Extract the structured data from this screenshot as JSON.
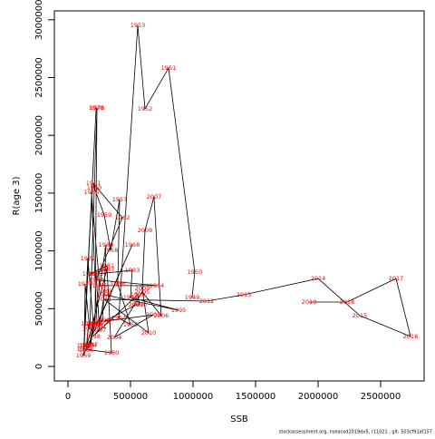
{
  "chart_data": {
    "type": "scatter",
    "xlabel": "SSB",
    "ylabel": "R(age 3)",
    "footer": "stockassessment.org, nseacod2019dv5, r11021 , git: 503cf91af157",
    "label_color": "#ff0000",
    "line_color": "#000000",
    "xlim": [
      -108700,
      2847800
    ],
    "ylim": [
      -125600,
      3077000
    ],
    "xticks": [
      0,
      500000,
      1000000,
      1500000,
      2000000,
      2500000
    ],
    "yticks": [
      0,
      500000,
      1000000,
      1500000,
      2000000,
      2500000,
      3000000
    ],
    "labels": [
      "1949",
      "1950",
      "1951",
      "1952",
      "1953",
      "1954",
      "1955",
      "1956",
      "1957",
      "1958",
      "1959",
      "1960",
      "1961",
      "1962",
      "1963",
      "1964",
      "1965",
      "1966",
      "1967",
      "1968",
      "1969",
      "1970",
      "1971",
      "1972",
      "1973",
      "1974",
      "1975",
      "1976",
      "1977",
      "1978",
      "1979",
      "1980",
      "1981",
      "1982",
      "1983",
      "1984",
      "1985",
      "1986",
      "1987",
      "1988",
      "1989",
      "1990",
      "1991",
      "1992",
      "1993",
      "1994",
      "1995",
      "1996",
      "1997",
      "1998",
      "1999",
      "2000",
      "2001",
      "2002",
      "2003",
      "2004",
      "2005",
      "2006",
      "2007",
      "2008",
      "2009",
      "2010",
      "2011",
      "2012",
      "2013",
      "2014",
      "2015",
      "2016",
      "2017",
      "2018",
      "2019"
    ],
    "x": [
      993000,
      1014000,
      804000,
      616000,
      558000,
      406000,
      500000,
      398000,
      413000,
      341000,
      290000,
      210000,
      203000,
      435000,
      225000,
      710000,
      253000,
      188000,
      232000,
      514000,
      123000,
      225000,
      130000,
      159000,
      202000,
      170000,
      217000,
      232000,
      174000,
      138000,
      130000,
      348000,
      311000,
      174000,
      311000,
      150000,
      165000,
      145000,
      181000,
      304000,
      290000,
      275000,
      250000,
      225000,
      514000,
      500000,
      884000,
      290000,
      246000,
      200000,
      558000,
      572000,
      544000,
      290000,
      681000,
      370000,
      594000,
      746000,
      688000,
      616000,
      594000,
      645000,
      290000,
      1109000,
      1406000,
      2000000,
      2333000,
      2739000,
      2623000,
      2232000,
      1928000
    ],
    "values": [
      597000,
      816000,
      2582000,
      2229000,
      2951000,
      420000,
      361000,
      714000,
      1444000,
      1005000,
      1311000,
      1546000,
      1585000,
      1287000,
      750000,
      699000,
      699000,
      1507000,
      369000,
      1052000,
      94000,
      2237000,
      180000,
      934000,
      369000,
      180000,
      369000,
      2237000,
      322000,
      714000,
      150000,
      118000,
      871000,
      800000,
      840000,
      180000,
      369000,
      140000,
      190000,
      1052000,
      650000,
      400000,
      350000,
      800000,
      832000,
      597000,
      487000,
      620000,
      314000,
      260000,
      620000,
      534000,
      534000,
      390000,
      447000,
      251000,
      644000,
      440000,
      1468000,
      1177000,
      675000,
      290000,
      581000,
      565000,
      620000,
      761000,
      440000,
      259000,
      761000,
      557000,
      557000
    ]
  }
}
